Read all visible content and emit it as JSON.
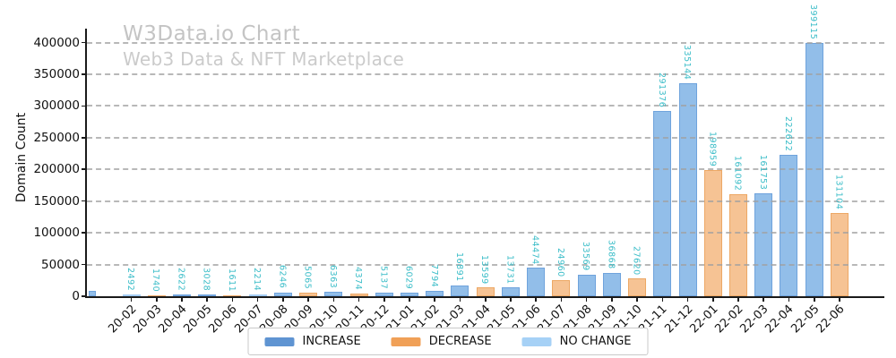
{
  "watermark": {
    "title": "W3Data.io Chart",
    "subtitle": "Web3 Data & NFT Marketplace"
  },
  "legend": [
    {
      "label": "INCREASE",
      "series": "increase",
      "color": "#5f94d2"
    },
    {
      "label": "DECREASE",
      "series": "decrease",
      "color": "#f0a057"
    },
    {
      "label": "NO CHANGE",
      "series": "no_change",
      "color": "#a6d1f6"
    }
  ],
  "chart_data": {
    "type": "bar",
    "title": "",
    "xlabel": "",
    "ylabel": "Domain Count",
    "ylim": [
      0,
      421000
    ],
    "y_ticks": [
      0,
      50000,
      100000,
      150000,
      200000,
      250000,
      300000,
      350000,
      400000
    ],
    "y_tick_labels": [
      "0",
      "50000",
      "100000",
      "150000",
      "200000",
      "250000",
      "300000",
      "350000",
      "400000"
    ],
    "grid": "horizontal-dashed",
    "legend_position": "bottom-center",
    "value_label_style": {
      "rotation": "vertical",
      "color": "#3bbdc8"
    },
    "categories": [
      "20-02",
      "20-03",
      "20-04",
      "20-05",
      "20-06",
      "20-07",
      "20-08",
      "20-09",
      "20-10",
      "20-11",
      "20-12",
      "21-01",
      "21-02",
      "21-03",
      "21-04",
      "21-05",
      "21-06",
      "21-07",
      "21-08",
      "21-09",
      "21-10",
      "21-11",
      "21-12",
      "22-01",
      "22-02",
      "22-03",
      "22-04",
      "22-05",
      "22-06"
    ],
    "values": [
      2492,
      1740,
      2622,
      3028,
      1611,
      2214,
      6246,
      5065,
      6363,
      4374,
      5137,
      6029,
      7794,
      16891,
      13599,
      13731,
      44474,
      24960,
      33569,
      36868,
      27620,
      291376,
      335144,
      198959,
      161092,
      161753,
      222622,
      399115,
      131104
    ],
    "bar_series": [
      "no_change",
      "decrease",
      "increase",
      "increase",
      "decrease",
      "no_change",
      "increase",
      "decrease",
      "increase",
      "decrease",
      "increase",
      "increase",
      "increase",
      "increase",
      "decrease",
      "increase",
      "increase",
      "decrease",
      "increase",
      "increase",
      "decrease",
      "increase",
      "increase",
      "decrease",
      "decrease",
      "increase",
      "increase",
      "increase",
      "decrease"
    ],
    "series_fill_colors": {
      "increase": "#92bee9",
      "decrease": "#f6c394",
      "no_change": "#bfdef9"
    },
    "series_edge_colors": {
      "increase": "#6fa3dc",
      "decrease": "#eda865",
      "no_change": "#a2cbf3"
    },
    "partial_edge_bar": {
      "series": "increase",
      "approx_value": 9000,
      "label_visible": false
    }
  }
}
